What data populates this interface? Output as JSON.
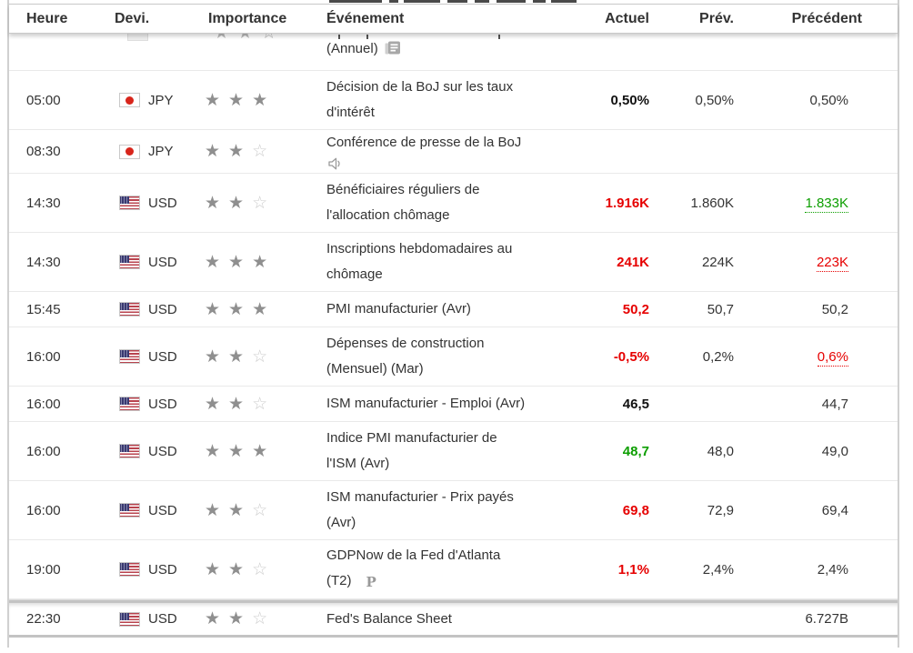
{
  "table": {
    "columns": {
      "time": "Heure",
      "currency": "Devi.",
      "importance": "Importance",
      "event": "Événement",
      "actual": "Actuel",
      "forecast": "Prév.",
      "previous": "Précédent"
    },
    "colors": {
      "negative": "#e60000",
      "positive": "#0c9e00",
      "text": "#333333",
      "star_filled": "#8f8f8f",
      "star_empty": "#cccccc"
    },
    "rows": [
      {
        "clipped": true,
        "time": "",
        "currency": "",
        "flag": "jp",
        "stars": null,
        "event_lines": [
          "(Annuel)"
        ],
        "icon": "report",
        "icon_placement": "inline",
        "actual": "",
        "forecast": "",
        "previous": ""
      },
      {
        "time": "05:00",
        "currency": "JPY",
        "flag": "jp",
        "stars": 3,
        "event_lines": [
          "Décision de la BoJ sur les taux",
          "d'intérêt"
        ],
        "actual": "0,50%",
        "actual_style": "bold",
        "forecast": "0,50%",
        "previous": "0,50%"
      },
      {
        "time": "08:30",
        "currency": "JPY",
        "flag": "jp",
        "stars": 2,
        "event_lines": [
          "Conférence de presse de la BoJ"
        ],
        "icon": "speaker",
        "icon_placement": "newline",
        "actual": "",
        "forecast": "",
        "previous": ""
      },
      {
        "time": "14:30",
        "currency": "USD",
        "flag": "us",
        "stars": 2,
        "event_lines": [
          "Bénéficiaires réguliers de",
          "l'allocation chômage"
        ],
        "actual": "1.916K",
        "actual_style": "bad",
        "forecast": "1.860K",
        "previous": "1.833K",
        "previous_style": "good revised"
      },
      {
        "time": "14:30",
        "currency": "USD",
        "flag": "us",
        "stars": 3,
        "event_lines": [
          "Inscriptions hebdomadaires au",
          "chômage"
        ],
        "actual": "241K",
        "actual_style": "bad",
        "forecast": "224K",
        "previous": "223K",
        "previous_style": "bad revised"
      },
      {
        "time": "15:45",
        "currency": "USD",
        "flag": "us",
        "stars": 3,
        "event_lines": [
          "PMI manufacturier (Avr)"
        ],
        "actual": "50,2",
        "actual_style": "bad",
        "forecast": "50,7",
        "previous": "50,2"
      },
      {
        "time": "16:00",
        "currency": "USD",
        "flag": "us",
        "stars": 2,
        "event_lines": [
          "Dépenses de construction",
          "(Mensuel) (Mar)"
        ],
        "actual": "-0,5%",
        "actual_style": "bad",
        "forecast": "0,2%",
        "previous": "0,6%",
        "previous_style": "bad revised"
      },
      {
        "time": "16:00",
        "currency": "USD",
        "flag": "us",
        "stars": 2,
        "event_lines": [
          "ISM manufacturier - Emploi (Avr)"
        ],
        "actual": "46,5",
        "actual_style": "bold",
        "forecast": "",
        "previous": "44,7"
      },
      {
        "time": "16:00",
        "currency": "USD",
        "flag": "us",
        "stars": 3,
        "event_lines": [
          "Indice PMI manufacturier de",
          "l'ISM (Avr)"
        ],
        "actual": "48,7",
        "actual_style": "good",
        "forecast": "48,0",
        "previous": "49,0"
      },
      {
        "time": "16:00",
        "currency": "USD",
        "flag": "us",
        "stars": 2,
        "event_lines": [
          "ISM manufacturier - Prix payés",
          "(Avr)"
        ],
        "actual": "69,8",
        "actual_style": "bad",
        "forecast": "72,9",
        "previous": "69,4"
      },
      {
        "time": "19:00",
        "currency": "USD",
        "flag": "us",
        "stars": 2,
        "event_lines": [
          "GDPNow de la Fed d'Atlanta",
          "(T2)"
        ],
        "icon": "preliminary",
        "icon_placement": "inline",
        "actual": "1,1%",
        "actual_style": "bad",
        "forecast": "2,4%",
        "previous": "2,4%"
      },
      {
        "time": "22:30",
        "currency": "USD",
        "flag": "us",
        "stars": 2,
        "last": true,
        "event_lines": [
          "Fed's Balance Sheet"
        ],
        "actual": "",
        "forecast": "",
        "previous": "6.727B"
      }
    ],
    "icons": {
      "report": "report-icon",
      "speaker": "speaker-icon",
      "preliminary": "preliminary-icon",
      "star_filled": "star-filled-icon",
      "star_empty": "star-empty-icon"
    }
  }
}
